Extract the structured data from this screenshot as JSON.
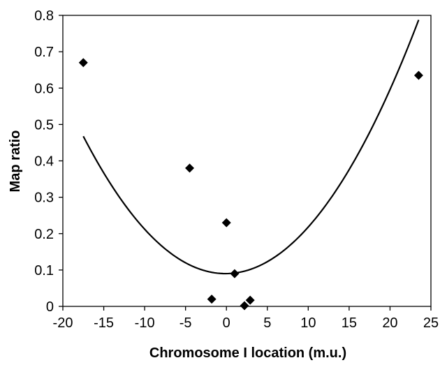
{
  "chart_data": {
    "type": "scatter",
    "title": "",
    "xlabel": "Chromosome I location (m.u.)",
    "ylabel": "Map ratio",
    "xlim": [
      -20,
      25
    ],
    "ylim": [
      0,
      0.8
    ],
    "x_ticks": [
      -20,
      -15,
      -10,
      -5,
      0,
      5,
      10,
      15,
      20,
      25
    ],
    "y_ticks": [
      0,
      0.1,
      0.2,
      0.3,
      0.4,
      0.5,
      0.6,
      0.7,
      0.8
    ],
    "x_tick_labels": [
      "-20",
      "-15",
      "-10",
      "-5",
      "0",
      "5",
      "10",
      "15",
      "20",
      "25"
    ],
    "y_tick_labels": [
      "0",
      "0.1",
      "0.2",
      "0.3",
      "0.4",
      "0.5",
      "0.6",
      "0.7",
      "0.8"
    ],
    "grid": false,
    "legend": "none",
    "marker": "diamond",
    "series": [
      {
        "points": [
          {
            "x": -17.5,
            "y": 0.67
          },
          {
            "x": -4.5,
            "y": 0.38
          },
          {
            "x": 0.0,
            "y": 0.23
          },
          {
            "x": -1.8,
            "y": 0.02
          },
          {
            "x": 1.0,
            "y": 0.09
          },
          {
            "x": 2.2,
            "y": 0.002
          },
          {
            "x": 2.9,
            "y": 0.017
          },
          {
            "x": 23.5,
            "y": 0.635
          }
        ]
      }
    ],
    "trendline": {
      "type": "polynomial",
      "order": 2,
      "x_range": [
        -17.5,
        23.5
      ],
      "coefficients": [
        0.0901,
        0.0003,
        0.00125
      ]
    },
    "colors": {
      "marker": "#000000",
      "line": "#000000",
      "axis": "#000000"
    }
  }
}
